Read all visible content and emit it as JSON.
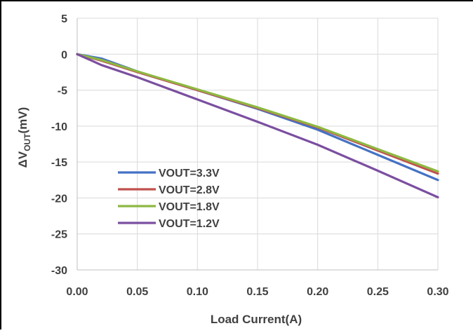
{
  "chart_data": {
    "type": "line",
    "title": "",
    "xlabel": "Load Current(A)",
    "ylabel": {
      "prefix": "ΔV",
      "subscript": "OUT",
      "suffix": "(mV)"
    },
    "xlim": [
      0,
      0.3
    ],
    "ylim": [
      -30,
      5
    ],
    "x_ticks": [
      "0.00",
      "0.05",
      "0.10",
      "0.15",
      "0.20",
      "0.25",
      "0.30"
    ],
    "y_ticks": [
      "5",
      "0",
      "-5",
      "-10",
      "-15",
      "-20",
      "-25",
      "-30"
    ],
    "x_tick_values": [
      0,
      0.05,
      0.1,
      0.15,
      0.2,
      0.25,
      0.3
    ],
    "y_tick_values": [
      5,
      0,
      -5,
      -10,
      -15,
      -20,
      -25,
      -30
    ],
    "grid": true,
    "legend_placement": "lower-left",
    "x": [
      0,
      0.02,
      0.05,
      0.1,
      0.15,
      0.2,
      0.25,
      0.3
    ],
    "series": [
      {
        "name": "VOUT=3.3V",
        "color": "#4472C4",
        "values": [
          0,
          -0.6,
          -2.4,
          -5.0,
          -7.6,
          -10.5,
          -14.0,
          -17.5
        ]
      },
      {
        "name": "VOUT=2.8V",
        "color": "#C0504D",
        "values": [
          0,
          -0.9,
          -2.5,
          -5.0,
          -7.5,
          -10.2,
          -13.4,
          -16.6
        ]
      },
      {
        "name": "VOUT=1.8V",
        "color": "#8DB843",
        "values": [
          0,
          -0.8,
          -2.4,
          -4.9,
          -7.4,
          -10.1,
          -13.2,
          -16.3
        ]
      },
      {
        "name": "VOUT=1.2V",
        "color": "#7B4FA0",
        "values": [
          0,
          -1.5,
          -3.2,
          -6.3,
          -9.4,
          -12.6,
          -16.2,
          -19.9
        ]
      }
    ]
  }
}
